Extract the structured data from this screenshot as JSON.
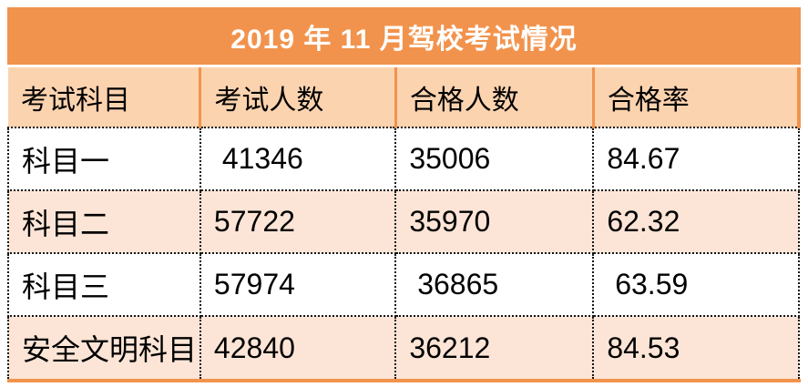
{
  "title": "2019 年 11 月驾校考试情况",
  "table": {
    "headers": [
      "考试科目",
      "考试人数",
      "合格人数",
      "合格率"
    ],
    "rows": [
      [
        "科目一",
        " 41346",
        "35006",
        "84.67"
      ],
      [
        "科目二",
        "57722",
        "35970",
        "62.32"
      ],
      [
        "科目三",
        "57974",
        " 36865",
        " 63.59"
      ],
      [
        "安全文明科目",
        "42840",
        "36212",
        "84.53"
      ]
    ]
  },
  "colors": {
    "accent_orange": "#F2934D",
    "header_fill": "#FCD3AF",
    "band_fill": "#FCE5D6",
    "title_text": "#FFFFFF",
    "body_text": "#000000",
    "dotted_border": "#141414"
  },
  "chart_data": {
    "type": "table",
    "title": "2019 年 11 月驾校考试情况",
    "columns": [
      "考试科目",
      "考试人数",
      "合格人数",
      "合格率"
    ],
    "rows": [
      [
        "科目一",
        41346,
        35006,
        84.67
      ],
      [
        "科目二",
        57722,
        35970,
        62.32
      ],
      [
        "科目三",
        57974,
        36865,
        63.59
      ],
      [
        "安全文明科目",
        42840,
        36212,
        84.53
      ]
    ]
  }
}
